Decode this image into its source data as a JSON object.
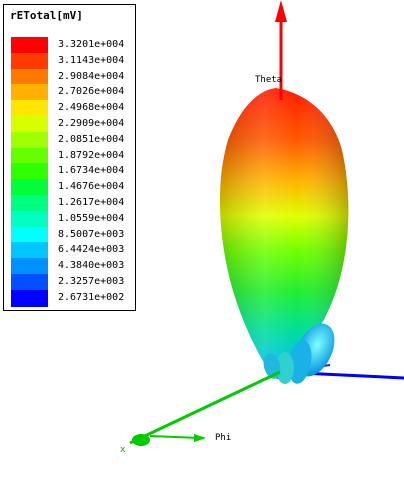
{
  "legend": {
    "title": "rETotal[mV]",
    "entries": [
      {
        "label": "3.3201e+004",
        "color": "#ff0000"
      },
      {
        "label": "3.1143e+004",
        "color": "#ff3c00"
      },
      {
        "label": "2.9084e+004",
        "color": "#ff7800"
      },
      {
        "label": "2.7026e+004",
        "color": "#ffb000"
      },
      {
        "label": "2.4968e+004",
        "color": "#ffe600"
      },
      {
        "label": "2.2909e+004",
        "color": "#d8ff00"
      },
      {
        "label": "2.0851e+004",
        "color": "#a0ff00"
      },
      {
        "label": "1.8792e+004",
        "color": "#66ff00"
      },
      {
        "label": "1.6734e+004",
        "color": "#30ff00"
      },
      {
        "label": "1.4676e+004",
        "color": "#00ff3a"
      },
      {
        "label": "1.2617e+004",
        "color": "#00ff80"
      },
      {
        "label": "1.0559e+004",
        "color": "#00ffc0"
      },
      {
        "label": "8.5007e+003",
        "color": "#00ffff"
      },
      {
        "label": "6.4424e+003",
        "color": "#00c8ff"
      },
      {
        "label": "4.3840e+003",
        "color": "#0090ff"
      },
      {
        "label": "2.3257e+003",
        "color": "#0050ff"
      },
      {
        "label": "2.6731e+002",
        "color": "#0000ff"
      }
    ]
  },
  "axes": {
    "theta_label": "Theta",
    "phi_label": "Phi",
    "theta_color": "#ff0000",
    "phi_color": "#00cc00",
    "third_color": "#0000ff"
  }
}
